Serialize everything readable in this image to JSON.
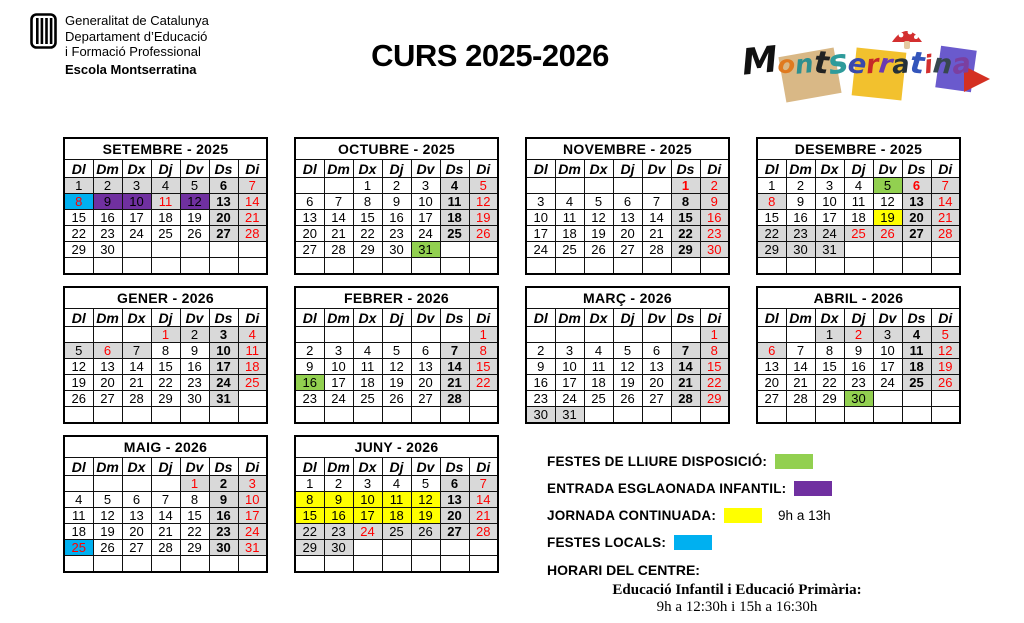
{
  "header": {
    "org_lines": [
      "Generalitat de Catalunya",
      "Departament d’Educació",
      "i Formació Professional"
    ],
    "school": "Escola Montserratina",
    "title": "CURS 2025-2026",
    "wordmark": "Montserratina"
  },
  "colors": {
    "non_school_day": "#d9d9d9",
    "free_disposal": "#92d050",
    "staggered_entry": "#7030a0",
    "continuous_day": "#ffff00",
    "local_holiday": "#00b0f0",
    "holiday_text": "#ff0000"
  },
  "day_headers": [
    "Dl",
    "Dm",
    "Dx",
    "Dj",
    "Dv",
    "Ds",
    "Di"
  ],
  "months": [
    {
      "name": "SETEMBRE - 2025",
      "cells": [
        "1:g",
        "2:g",
        "3:g",
        "4:g",
        "5:g",
        "6:gb",
        "7:gr",
        "8:cr",
        "9:p",
        "10:p",
        "11:gr",
        "12:p",
        "13:gb",
        "14:gr",
        "15",
        "16",
        "17",
        "18",
        "19",
        "20:gb",
        "21:gr",
        "22",
        "23",
        "24",
        "25",
        "26",
        "27:gb",
        "28:gr",
        "29",
        "30",
        "",
        "",
        "",
        "",
        "",
        "",
        "",
        "",
        "",
        "",
        "",
        ""
      ]
    },
    {
      "name": "OCTUBRE - 2025",
      "cells": [
        "",
        "",
        "1",
        "2",
        "3",
        "4:gb",
        "5:gr",
        "6",
        "7",
        "8",
        "9",
        "10",
        "11:gb",
        "12:gr",
        "13",
        "14",
        "15",
        "16",
        "17",
        "18:gb",
        "19:gr",
        "20",
        "21",
        "22",
        "23",
        "24",
        "25:gb",
        "26:gr",
        "27",
        "28",
        "29",
        "30",
        "31:G",
        "",
        "",
        "",
        "",
        "",
        "",
        "",
        "",
        ""
      ]
    },
    {
      "name": "NOVEMBRE - 2025",
      "cells": [
        "",
        "",
        "",
        "",
        "",
        "1:grb",
        "2:gr",
        "3",
        "4",
        "5",
        "6",
        "7",
        "8:gb",
        "9:gr",
        "10",
        "11",
        "12",
        "13",
        "14",
        "15:gb",
        "16:gr",
        "17",
        "18",
        "19",
        "20",
        "21",
        "22:gb",
        "23:gr",
        "24",
        "25",
        "26",
        "27",
        "28",
        "29:gb",
        "30:gr",
        "",
        "",
        "",
        "",
        "",
        "",
        ""
      ]
    },
    {
      "name": "DESEMBRE - 2025",
      "cells": [
        "1",
        "2",
        "3",
        "4",
        "5:G",
        "6:grb",
        "7:gr",
        "8:gr",
        "9",
        "10",
        "11",
        "12",
        "13:gb",
        "14:gr",
        "15",
        "16",
        "17",
        "18",
        "19:y",
        "20:gb",
        "21:gr",
        "22:g",
        "23:g",
        "24:g",
        "25:gr",
        "26:gr",
        "27:gb",
        "28:gr",
        "29:g",
        "30:g",
        "31:g",
        "",
        "",
        "",
        "",
        "",
        "",
        "",
        "",
        "",
        "",
        ""
      ]
    },
    {
      "name": "GENER - 2026",
      "cells": [
        "",
        "",
        "",
        "1:gr",
        "2:g",
        "3:gb",
        "4:gr",
        "5:g",
        "6:gr",
        "7:g",
        "8",
        "9",
        "10:gb",
        "11:gr",
        "12",
        "13",
        "14",
        "15",
        "16",
        "17:gb",
        "18:gr",
        "19",
        "20",
        "21",
        "22",
        "23",
        "24:gb",
        "25:gr",
        "26",
        "27",
        "28",
        "29",
        "30",
        "31:gb",
        "",
        "",
        "",
        "",
        "",
        "",
        "",
        ""
      ]
    },
    {
      "name": "FEBRER - 2026",
      "cells": [
        "",
        "",
        "",
        "",
        "",
        "",
        "1:gr",
        "2",
        "3",
        "4",
        "5",
        "6",
        "7:gb",
        "8:gr",
        "9",
        "10",
        "11",
        "12",
        "13",
        "14:gb",
        "15:gr",
        "16:G",
        "17",
        "18",
        "19",
        "20",
        "21:gb",
        "22:gr",
        "23",
        "24",
        "25",
        "26",
        "27",
        "28:gb",
        "",
        "",
        "",
        "",
        "",
        "",
        "",
        ""
      ]
    },
    {
      "name": "MARÇ - 2026",
      "cells": [
        "",
        "",
        "",
        "",
        "",
        "",
        "1:gr",
        "2",
        "3",
        "4",
        "5",
        "6",
        "7:gb",
        "8:gr",
        "9",
        "10",
        "11",
        "12",
        "13",
        "14:gb",
        "15:gr",
        "16",
        "17",
        "18",
        "19",
        "20",
        "21:gb",
        "22:gr",
        "23",
        "24",
        "25",
        "26",
        "27",
        "28:gb",
        "29:gr",
        "30:g",
        "31:g",
        "",
        "",
        "",
        "",
        ""
      ]
    },
    {
      "name": "ABRIL - 2026",
      "cells": [
        "",
        "",
        "1:g",
        "2:gr",
        "3:g",
        "4:gb",
        "5:gr",
        "6:gr",
        "7",
        "8",
        "9",
        "10",
        "11:gb",
        "12:gr",
        "13",
        "14",
        "15",
        "16",
        "17",
        "18:gb",
        "19:gr",
        "20",
        "21",
        "22",
        "23",
        "24",
        "25:gb",
        "26:gr",
        "27",
        "28",
        "29",
        "30:G",
        "",
        "",
        "",
        "",
        "",
        "",
        "",
        "",
        "",
        ""
      ]
    },
    {
      "name": "MAIG - 2026",
      "cells": [
        "",
        "",
        "",
        "",
        "1:gr",
        "2:gb",
        "3:gr",
        "4",
        "5",
        "6",
        "7",
        "8",
        "9:gb",
        "10:gr",
        "11",
        "12",
        "13",
        "14",
        "15",
        "16:gb",
        "17:gr",
        "18",
        "19",
        "20",
        "21",
        "22",
        "23:gb",
        "24:gr",
        "25:cr",
        "26",
        "27",
        "28",
        "29",
        "30:gb",
        "31:gr",
        "",
        "",
        "",
        "",
        "",
        "",
        ""
      ]
    },
    {
      "name": "JUNY - 2026",
      "cells": [
        "1",
        "2",
        "3",
        "4",
        "5",
        "6:gb",
        "7:gr",
        "8:y",
        "9:y",
        "10:y",
        "11:y",
        "12:y",
        "13:gb",
        "14:gr",
        "15:y",
        "16:y",
        "17:y",
        "18:y",
        "19:y",
        "20:gb",
        "21:gr",
        "22:g",
        "23:g",
        "24:gr",
        "25:g",
        "26:g",
        "27:gb",
        "28:gr",
        "29:g",
        "30:g",
        "",
        "",
        "",
        "",
        "",
        "",
        "",
        "",
        "",
        "",
        "",
        ""
      ]
    }
  ],
  "legend": {
    "items": [
      {
        "label": "FESTES DE LLIURE DISPOSICIÓ:",
        "color": "free_disposal",
        "note": ""
      },
      {
        "label": "ENTRADA ESGLAONADA INFANTIL:",
        "color": "staggered_entry",
        "note": ""
      },
      {
        "label": "JORNADA CONTINUADA:",
        "color": "continuous_day",
        "note": "9h a 13h"
      },
      {
        "label": "FESTES LOCALS:",
        "color": "local_holiday",
        "note": ""
      }
    ],
    "schedule_title": "HORARI DEL CENTRE:",
    "schedule_group": "Educació Infantil i Educació Primària:",
    "schedule_hours": "9h a 12:30h i 15h a 16:30h"
  }
}
